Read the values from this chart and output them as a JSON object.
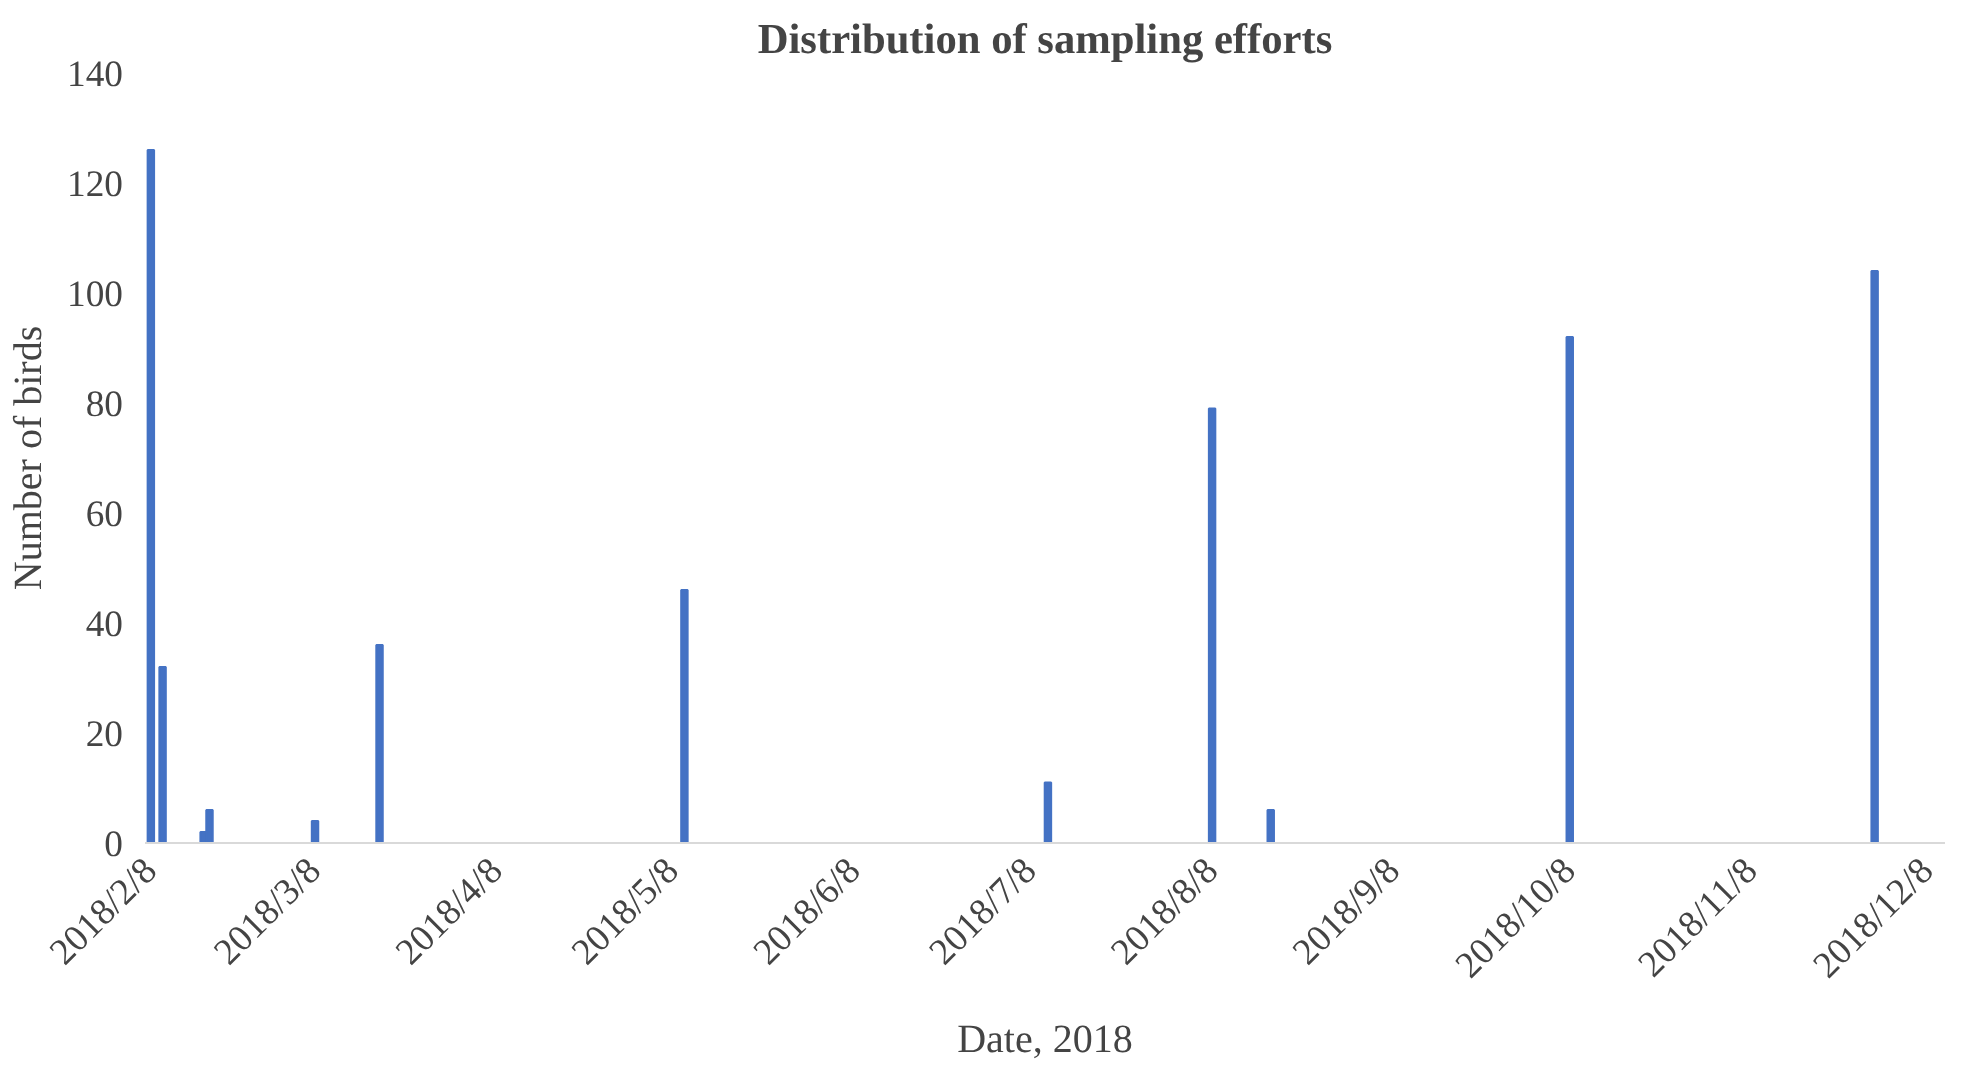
{
  "chart_data": {
    "type": "bar",
    "title": "Distribution of sampling efforts",
    "xlabel": "Date, 2018",
    "ylabel": "Number of birds",
    "x": [
      "2018-02-08",
      "2018-02-10",
      "2018-02-17",
      "2018-02-18",
      "2018-03-08",
      "2018-03-19",
      "2018-05-10",
      "2018-07-11",
      "2018-08-08",
      "2018-08-18",
      "2018-10-08",
      "2018-11-29"
    ],
    "series": [
      {
        "color": "#4472c4",
        "values": [
          126,
          32,
          2,
          6,
          4,
          36,
          46,
          11,
          79,
          6,
          92,
          104
        ]
      }
    ],
    "xlim": [
      "2018-02-07",
      "2018-12-11"
    ],
    "xticks": [
      {
        "value": "2018-02-08",
        "label": "2018/2/8"
      },
      {
        "value": "2018-03-08",
        "label": "2018/3/8"
      },
      {
        "value": "2018-04-08",
        "label": "2018/4/8"
      },
      {
        "value": "2018-05-08",
        "label": "2018/5/8"
      },
      {
        "value": "2018-06-08",
        "label": "2018/6/8"
      },
      {
        "value": "2018-07-08",
        "label": "2018/7/8"
      },
      {
        "value": "2018-08-08",
        "label": "2018/8/8"
      },
      {
        "value": "2018-09-08",
        "label": "2018/9/8"
      },
      {
        "value": "2018-10-08",
        "label": "2018/10/8"
      },
      {
        "value": "2018-11-08",
        "label": "2018/11/8"
      },
      {
        "value": "2018-12-08",
        "label": "2018/12/8"
      }
    ],
    "ylim": [
      0,
      140
    ],
    "yticks": [
      0,
      20,
      40,
      60,
      80,
      100,
      120,
      140
    ],
    "grid": false
  }
}
